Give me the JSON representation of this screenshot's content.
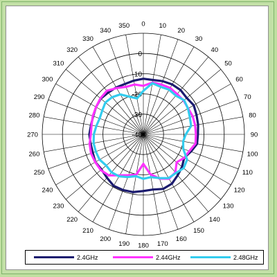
{
  "chart_data": {
    "type": "polar-line",
    "angle_labels": [
      "0",
      "10",
      "20",
      "30",
      "40",
      "50",
      "60",
      "70",
      "80",
      "90",
      "100",
      "110",
      "120",
      "130",
      "140",
      "150",
      "160",
      "170",
      "180",
      "190",
      "200",
      "210",
      "220",
      "230",
      "240",
      "250",
      "260",
      "270",
      "280",
      "290",
      "300",
      "310",
      "320",
      "330",
      "340",
      "350"
    ],
    "radial_tick_labels": [
      "0",
      "-10",
      "-20",
      "-30",
      "-40"
    ],
    "rlim": [
      -40,
      10
    ],
    "grid": true,
    "legend_position": "bottom",
    "series": [
      {
        "name": "2.4GHz",
        "color": "#1a1a6e",
        "angles": [
          0,
          10,
          20,
          30,
          40,
          50,
          60,
          70,
          80,
          90,
          100,
          110,
          120,
          130,
          140,
          150,
          160,
          170,
          180,
          190,
          200,
          210,
          220,
          230,
          240,
          250,
          260,
          270,
          280,
          290,
          300,
          310,
          320,
          330,
          340,
          350
        ],
        "values": [
          -12.5,
          -12.7,
          -12,
          -11.5,
          -11.4,
          -12,
          -11.2,
          -12,
          -12.5,
          -13,
          -13,
          -15,
          -16.7,
          -15,
          -13.6,
          -11.8,
          -11.3,
          -12.3,
          -12,
          -11,
          -10.7,
          -10.6,
          -12,
          -13,
          -12.6,
          -13.4,
          -13.5,
          -13.3,
          -13.7,
          -13.6,
          -13,
          -12.5,
          -13,
          -13.2,
          -13.5,
          -13
        ]
      },
      {
        "name": "2.44GHz",
        "color": "#ff33ff",
        "angles": [
          0,
          10,
          20,
          30,
          40,
          50,
          60,
          70,
          80,
          90,
          100,
          110,
          120,
          130,
          140,
          150,
          160,
          170,
          180,
          190,
          200,
          210,
          220,
          230,
          240,
          250,
          260,
          270,
          280,
          290,
          300,
          310,
          320,
          330,
          340,
          350
        ],
        "values": [
          -16,
          -14,
          -13.8,
          -13.5,
          -14,
          -14,
          -14.4,
          -14,
          -14,
          -14,
          -13.8,
          -15.8,
          -16.7,
          -18.5,
          -15.4,
          -14.6,
          -16.7,
          -20,
          -25.4,
          -19.7,
          -18.5,
          -16.6,
          -13.5,
          -12.5,
          -12.5,
          -12.5,
          -13,
          -14,
          -14,
          -13.4,
          -13,
          -12.3,
          -11.9,
          -13.6,
          -15,
          -15
        ]
      },
      {
        "name": "2.48GHz",
        "color": "#33ccee",
        "angles": [
          0,
          10,
          20,
          30,
          40,
          50,
          60,
          70,
          80,
          90,
          100,
          110,
          120,
          130,
          140,
          150,
          160,
          170,
          180,
          190,
          200,
          210,
          220,
          230,
          240,
          250,
          260,
          270,
          280,
          290,
          300,
          310,
          320,
          330,
          340,
          350
        ],
        "values": [
          -18.5,
          -14.3,
          -15,
          -14.5,
          -15,
          -13.7,
          -14.5,
          -15.5,
          -16,
          -19,
          -20,
          -19,
          -15,
          -14,
          -15,
          -15,
          -17,
          -18.5,
          -18,
          -19,
          -17.5,
          -16,
          -15.5,
          -16,
          -15,
          -15,
          -15,
          -15.5,
          -16.4,
          -17,
          -16.5,
          -15.5,
          -16,
          -17.2,
          -20.2,
          -22
        ]
      }
    ]
  }
}
